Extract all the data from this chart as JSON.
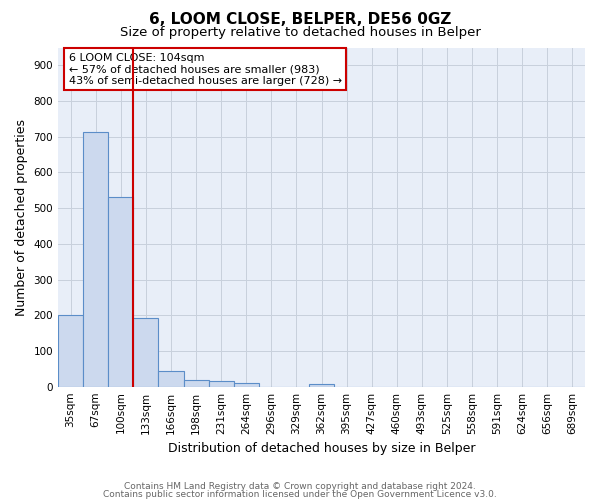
{
  "title1": "6, LOOM CLOSE, BELPER, DE56 0GZ",
  "title2": "Size of property relative to detached houses in Belper",
  "xlabel": "Distribution of detached houses by size in Belper",
  "ylabel": "Number of detached properties",
  "categories": [
    "35sqm",
    "67sqm",
    "100sqm",
    "133sqm",
    "166sqm",
    "198sqm",
    "231sqm",
    "264sqm",
    "296sqm",
    "329sqm",
    "362sqm",
    "395sqm",
    "427sqm",
    "460sqm",
    "493sqm",
    "525sqm",
    "558sqm",
    "591sqm",
    "624sqm",
    "656sqm",
    "689sqm"
  ],
  "values": [
    200,
    713,
    530,
    192,
    45,
    20,
    15,
    10,
    0,
    0,
    8,
    0,
    0,
    0,
    0,
    0,
    0,
    0,
    0,
    0,
    0
  ],
  "bar_color": "#ccd9ee",
  "bar_edge_color": "#5b8dc8",
  "plot_bg_color": "#e8eef8",
  "background_color": "#ffffff",
  "grid_color": "#c8d0dc",
  "ylim": [
    0,
    950
  ],
  "yticks": [
    0,
    100,
    200,
    300,
    400,
    500,
    600,
    700,
    800,
    900
  ],
  "vline_x": 2.5,
  "vline_color": "#cc0000",
  "annotation_text": "6 LOOM CLOSE: 104sqm\n← 57% of detached houses are smaller (983)\n43% of semi-detached houses are larger (728) →",
  "annotation_box_color": "#cc0000",
  "footer1": "Contains HM Land Registry data © Crown copyright and database right 2024.",
  "footer2": "Contains public sector information licensed under the Open Government Licence v3.0.",
  "title1_fontsize": 11,
  "title2_fontsize": 9.5,
  "axis_label_fontsize": 9,
  "tick_fontsize": 7.5,
  "annotation_fontsize": 8,
  "footer_fontsize": 6.5
}
